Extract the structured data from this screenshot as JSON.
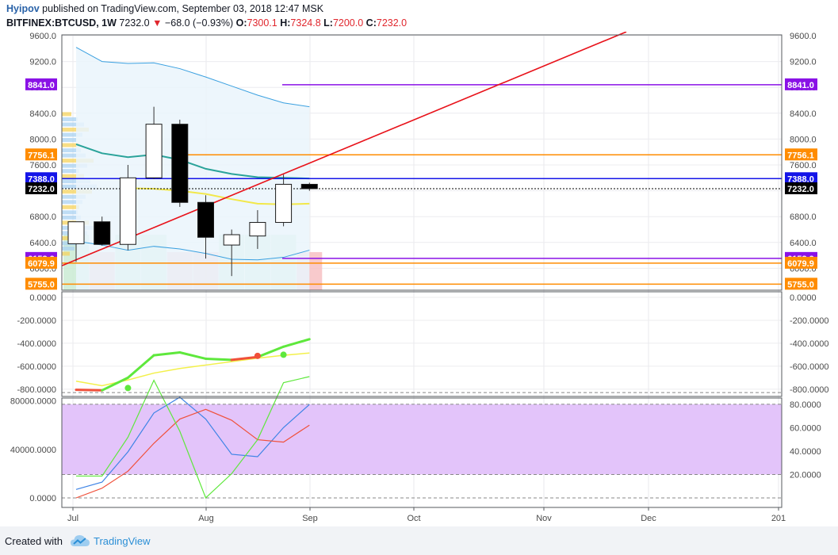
{
  "header": {
    "author": "Hyipov",
    "published_text": "published on TradingView.com, September 03, 2018 12:47 MSK",
    "symbol": "BITFINEX:BTCUSD, 1W",
    "last": "7232.0",
    "change": "−68.0 (−0.93%)",
    "o_label": "O:",
    "o_value": "7300.1",
    "h_label": "H:",
    "h_value": "7324.8",
    "l_label": "L:",
    "l_value": "7200.0",
    "c_label": "C:",
    "c_value": "7232.0"
  },
  "footer": {
    "created_with": "Created with",
    "brand": "TradingView"
  },
  "colors": {
    "up_candle": "#ffffff",
    "down_candle": "#000000",
    "trendline": "#e8121a",
    "macd_up": "#5ee83c",
    "macd_down": "#f0503a",
    "signal": "#f3f04a",
    "stoch_band": "#e3c4fa"
  },
  "chart_data": [
    {
      "type": "candlestick",
      "title": "BITFINEX:BTCUSD, 1W",
      "x_labels": [
        "Jul",
        "Aug",
        "Sep",
        "Oct",
        "Nov",
        "Dec",
        "201"
      ],
      "ylim": [
        5700,
        9640
      ],
      "y_ticks": [
        9600.0,
        9200.0,
        8800.0,
        8400.0,
        8000.0,
        7600.0,
        7200.0,
        6800.0,
        6400.0,
        6000.0,
        5600.0
      ],
      "y_tick_labels": [
        "9600.0",
        "9200.0",
        "8800.0",
        "8400.0",
        "8000.0",
        "7600.0",
        "7200.0",
        "6800.0",
        "6400.0",
        "6000.0",
        "5600.0"
      ],
      "candles": [
        {
          "week": "Jun 25",
          "open": 6380,
          "high": 6700,
          "low": 6100,
          "close": 6720
        },
        {
          "week": "Jul 02",
          "open": 6720,
          "high": 6800,
          "low": 6350,
          "close": 6370
        },
        {
          "week": "Jul 09",
          "open": 6370,
          "high": 7600,
          "low": 6280,
          "close": 7400
        },
        {
          "week": "Jul 16",
          "open": 7400,
          "high": 8500,
          "low": 7380,
          "close": 8230
        },
        {
          "week": "Jul 23",
          "open": 8230,
          "high": 8300,
          "low": 6950,
          "close": 7020
        },
        {
          "week": "Jul 30",
          "open": 7020,
          "high": 7130,
          "low": 6150,
          "close": 6480
        },
        {
          "week": "Aug 06",
          "open": 6360,
          "high": 6600,
          "low": 5880,
          "close": 6520
        },
        {
          "week": "Aug 13",
          "open": 6500,
          "high": 6900,
          "low": 6300,
          "close": 6710
        },
        {
          "week": "Aug 20",
          "open": 6710,
          "high": 7450,
          "low": 6650,
          "close": 7300
        },
        {
          "week": "Aug 27",
          "open": 7300,
          "high": 7324.8,
          "low": 7200,
          "close": 7232
        }
      ],
      "bb_upper": [
        9420,
        9200,
        9170,
        9180,
        9090,
        8960,
        8820,
        8680,
        8560,
        8500
      ],
      "bb_mid": [
        7920,
        7780,
        7720,
        7760,
        7680,
        7540,
        7460,
        7410,
        7400,
        7390
      ],
      "bb_lower": [
        6420,
        6360,
        6280,
        6340,
        6300,
        6230,
        6140,
        6130,
        6170,
        6280
      ],
      "ma_short": [
        null,
        null,
        7240,
        7230,
        7200,
        7150,
        7070,
        7000,
        6990,
        7000
      ],
      "trendline": {
        "start": [
          "Jun 25",
          6040
        ],
        "end": [
          "Dec 10",
          9660
        ]
      },
      "levels": [
        {
          "label": "8841.0",
          "value": 8841.0,
          "color": "#8a12e6"
        },
        {
          "label": "7756.1",
          "value": 7756.1,
          "color": "#ff8c00"
        },
        {
          "label": "7388.0",
          "value": 7388.0,
          "color": "#1414e8"
        },
        {
          "label": "7232.0",
          "value": 7232.0,
          "color": "#000000"
        },
        {
          "label": "6153.9",
          "value": 6153.9,
          "color": "#8a12e6"
        },
        {
          "label": "6079.9",
          "value": 6079.9,
          "color": "#ff8c00"
        },
        {
          "label": "5755.0",
          "value": 5755.0,
          "color": "#ff8c00"
        }
      ],
      "volume_up": [
        true,
        false,
        true,
        true,
        false,
        false,
        true,
        true,
        true,
        false
      ]
    },
    {
      "type": "line",
      "title": "",
      "ylim": [
        -850,
        30
      ],
      "y_ticks": [
        0,
        -200,
        -400,
        -600,
        -800
      ],
      "y_tick_labels": [
        "0.0000",
        "-200.0000",
        "-400.0000",
        "-600.0000",
        "-800.0000"
      ],
      "series": [
        {
          "values": [
            -805,
            -810,
            -700,
            -505,
            -480,
            -535,
            -545,
            -520,
            -430,
            -365
          ]
        },
        {
          "values": [
            -730,
            -770,
            -720,
            -660,
            -620,
            -590,
            -560,
            -530,
            -505,
            -485
          ]
        }
      ],
      "dots": [
        {
          "week": "Jul 09",
          "value": -790
        },
        {
          "week": "Aug 13",
          "value": -510
        },
        {
          "week": "Aug 20",
          "value": -500
        }
      ]
    },
    {
      "type": "line",
      "title": "",
      "ylim_left": [
        -10000,
        120000
      ],
      "y_ticks_left": [
        80000,
        40000,
        0
      ],
      "y_tick_labels_left": [
        "80000.0000",
        "40000.0000",
        "0.0000"
      ],
      "ylim_right": [
        -8,
        90
      ],
      "y_ticks_right": [
        80,
        60,
        40,
        20
      ],
      "y_tick_labels_right": [
        "80.0000",
        "60.0000",
        "40.0000",
        "20.0000"
      ],
      "band": [
        20,
        80
      ],
      "series": [
        {
          "values": [
            7000,
            13000,
            38000,
            70000,
            83000,
            65000,
            36000,
            34000,
            58000,
            77000
          ]
        },
        {
          "values": [
            0,
            8000,
            22000,
            45000,
            65000,
            73000,
            64000,
            48000,
            46000,
            60000
          ]
        },
        {
          "values": [
            18000,
            18000,
            50000,
            97000,
            55000,
            0,
            20000,
            48000,
            95000,
            100000
          ]
        }
      ]
    }
  ]
}
